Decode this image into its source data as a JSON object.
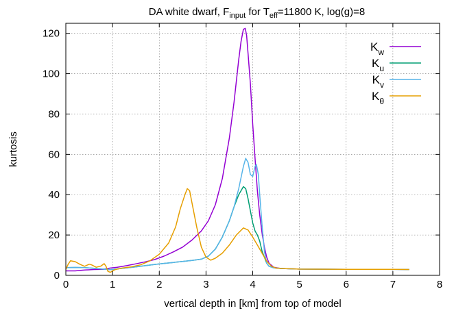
{
  "chart_data": {
    "type": "line",
    "title_parts": [
      {
        "text": "DA white dwarf, F",
        "shift": "base"
      },
      {
        "text": "input",
        "shift": "sub"
      },
      {
        "text": " for T",
        "shift": "base"
      },
      {
        "text": "eff",
        "shift": "sub"
      },
      {
        "text": "=11800 K, log(g)=8",
        "shift": "base"
      }
    ],
    "xlabel": "vertical depth in [km] from top of model",
    "ylabel": "kurtosis",
    "xlim": [
      0,
      8
    ],
    "ylim": [
      0,
      125
    ],
    "xticks": [
      0,
      1,
      2,
      3,
      4,
      5,
      6,
      7,
      8
    ],
    "yticks": [
      0,
      20,
      40,
      60,
      80,
      100,
      120
    ],
    "grid": true,
    "legend_position": "top-right",
    "series": [
      {
        "name": "K",
        "sub": "w",
        "color": "#9400d3",
        "points": [
          [
            0,
            2.2
          ],
          [
            0.2,
            2.2
          ],
          [
            0.4,
            2.6
          ],
          [
            0.6,
            2.9
          ],
          [
            0.8,
            3.0
          ],
          [
            0.95,
            3.6
          ],
          [
            1.1,
            4.0
          ],
          [
            1.3,
            4.8
          ],
          [
            1.5,
            5.7
          ],
          [
            1.7,
            6.7
          ],
          [
            1.9,
            7.8
          ],
          [
            2.1,
            9.5
          ],
          [
            2.3,
            11.6
          ],
          [
            2.5,
            14
          ],
          [
            2.7,
            17.5
          ],
          [
            2.9,
            22
          ],
          [
            3.05,
            27
          ],
          [
            3.2,
            35
          ],
          [
            3.35,
            48
          ],
          [
            3.5,
            68
          ],
          [
            3.6,
            86
          ],
          [
            3.7,
            107
          ],
          [
            3.75,
            116
          ],
          [
            3.8,
            122
          ],
          [
            3.84,
            122.5
          ],
          [
            3.87,
            119
          ],
          [
            3.9,
            110
          ],
          [
            3.95,
            95
          ],
          [
            4.0,
            75
          ],
          [
            4.05,
            58
          ],
          [
            4.1,
            42
          ],
          [
            4.15,
            30
          ],
          [
            4.2,
            21
          ],
          [
            4.25,
            14
          ],
          [
            4.3,
            9
          ],
          [
            4.35,
            6
          ],
          [
            4.45,
            4
          ],
          [
            4.6,
            3.4
          ],
          [
            5.0,
            3.1
          ],
          [
            6.0,
            3.0
          ],
          [
            7.0,
            3.0
          ],
          [
            7.35,
            2.9
          ]
        ]
      },
      {
        "name": "K",
        "sub": "u",
        "color": "#009e73",
        "points": [
          [
            0,
            3.8
          ],
          [
            0.2,
            3.9
          ],
          [
            0.4,
            3.8
          ],
          [
            0.6,
            3.5
          ],
          [
            0.8,
            3.1
          ],
          [
            0.95,
            2.8
          ],
          [
            1.1,
            3.2
          ],
          [
            1.3,
            3.7
          ],
          [
            1.5,
            4.2
          ],
          [
            1.7,
            4.8
          ],
          [
            1.9,
            5.4
          ],
          [
            2.1,
            5.9
          ],
          [
            2.3,
            6.4
          ],
          [
            2.5,
            6.9
          ],
          [
            2.7,
            7.4
          ],
          [
            2.9,
            8.0
          ],
          [
            3.05,
            9.5
          ],
          [
            3.2,
            13
          ],
          [
            3.35,
            19
          ],
          [
            3.5,
            27
          ],
          [
            3.6,
            34
          ],
          [
            3.7,
            40
          ],
          [
            3.8,
            44
          ],
          [
            3.85,
            43
          ],
          [
            3.9,
            38
          ],
          [
            3.95,
            32
          ],
          [
            4.0,
            26
          ],
          [
            4.05,
            22
          ],
          [
            4.1,
            20
          ],
          [
            4.15,
            17
          ],
          [
            4.2,
            12
          ],
          [
            4.25,
            9
          ],
          [
            4.3,
            6
          ],
          [
            4.35,
            4.5
          ],
          [
            4.45,
            3.7
          ],
          [
            4.6,
            3.4
          ],
          [
            5.0,
            3.1
          ],
          [
            6.0,
            3.0
          ],
          [
            7.0,
            3.0
          ],
          [
            7.35,
            2.9
          ]
        ]
      },
      {
        "name": "K",
        "sub": "v",
        "color": "#56b4e9",
        "points": [
          [
            0,
            3.8
          ],
          [
            0.2,
            3.9
          ],
          [
            0.4,
            3.8
          ],
          [
            0.6,
            3.5
          ],
          [
            0.8,
            3.1
          ],
          [
            0.95,
            2.8
          ],
          [
            1.1,
            3.2
          ],
          [
            1.3,
            3.7
          ],
          [
            1.5,
            4.2
          ],
          [
            1.7,
            4.8
          ],
          [
            1.9,
            5.4
          ],
          [
            2.1,
            5.9
          ],
          [
            2.3,
            6.4
          ],
          [
            2.5,
            6.9
          ],
          [
            2.7,
            7.4
          ],
          [
            2.9,
            8.0
          ],
          [
            3.05,
            9.5
          ],
          [
            3.2,
            13
          ],
          [
            3.35,
            19
          ],
          [
            3.5,
            27
          ],
          [
            3.6,
            34
          ],
          [
            3.7,
            43
          ],
          [
            3.8,
            54
          ],
          [
            3.85,
            58
          ],
          [
            3.9,
            56
          ],
          [
            3.95,
            50
          ],
          [
            4.0,
            49
          ],
          [
            4.05,
            54
          ],
          [
            4.08,
            55
          ],
          [
            4.12,
            50
          ],
          [
            4.15,
            40
          ],
          [
            4.2,
            25
          ],
          [
            4.25,
            12
          ],
          [
            4.3,
            6
          ],
          [
            4.35,
            4.5
          ],
          [
            4.45,
            3.7
          ],
          [
            4.6,
            3.4
          ],
          [
            5.0,
            3.1
          ],
          [
            6.0,
            3.0
          ],
          [
            7.0,
            3.0
          ],
          [
            7.35,
            2.9
          ]
        ]
      },
      {
        "name": "K",
        "sub": "θ",
        "color": "#e69f00",
        "points": [
          [
            0,
            3
          ],
          [
            0.05,
            5.5
          ],
          [
            0.1,
            7.2
          ],
          [
            0.2,
            6.8
          ],
          [
            0.3,
            5.5
          ],
          [
            0.4,
            4.5
          ],
          [
            0.5,
            5.5
          ],
          [
            0.55,
            5.2
          ],
          [
            0.65,
            4.0
          ],
          [
            0.75,
            4.6
          ],
          [
            0.82,
            5.8
          ],
          [
            0.86,
            4.5
          ],
          [
            0.9,
            2.0
          ],
          [
            0.95,
            1.5
          ],
          [
            1.05,
            2.8
          ],
          [
            1.2,
            3.6
          ],
          [
            1.4,
            4.2
          ],
          [
            1.6,
            5.2
          ],
          [
            1.8,
            7.2
          ],
          [
            2.0,
            10.5
          ],
          [
            2.2,
            16
          ],
          [
            2.35,
            24
          ],
          [
            2.45,
            33
          ],
          [
            2.55,
            40
          ],
          [
            2.6,
            43
          ],
          [
            2.65,
            42
          ],
          [
            2.7,
            36
          ],
          [
            2.8,
            24
          ],
          [
            2.9,
            14
          ],
          [
            3.0,
            9
          ],
          [
            3.1,
            7.5
          ],
          [
            3.2,
            8.5
          ],
          [
            3.35,
            11
          ],
          [
            3.5,
            15
          ],
          [
            3.65,
            20
          ],
          [
            3.8,
            23.5
          ],
          [
            3.9,
            22.5
          ],
          [
            4.0,
            19
          ],
          [
            4.1,
            15
          ],
          [
            4.2,
            11
          ],
          [
            4.3,
            7
          ],
          [
            4.4,
            4.5
          ],
          [
            4.5,
            3.6
          ],
          [
            4.7,
            3.3
          ],
          [
            5.0,
            3.1
          ],
          [
            6.0,
            3.0
          ],
          [
            7.0,
            3.0
          ],
          [
            7.35,
            2.9
          ]
        ]
      }
    ]
  }
}
